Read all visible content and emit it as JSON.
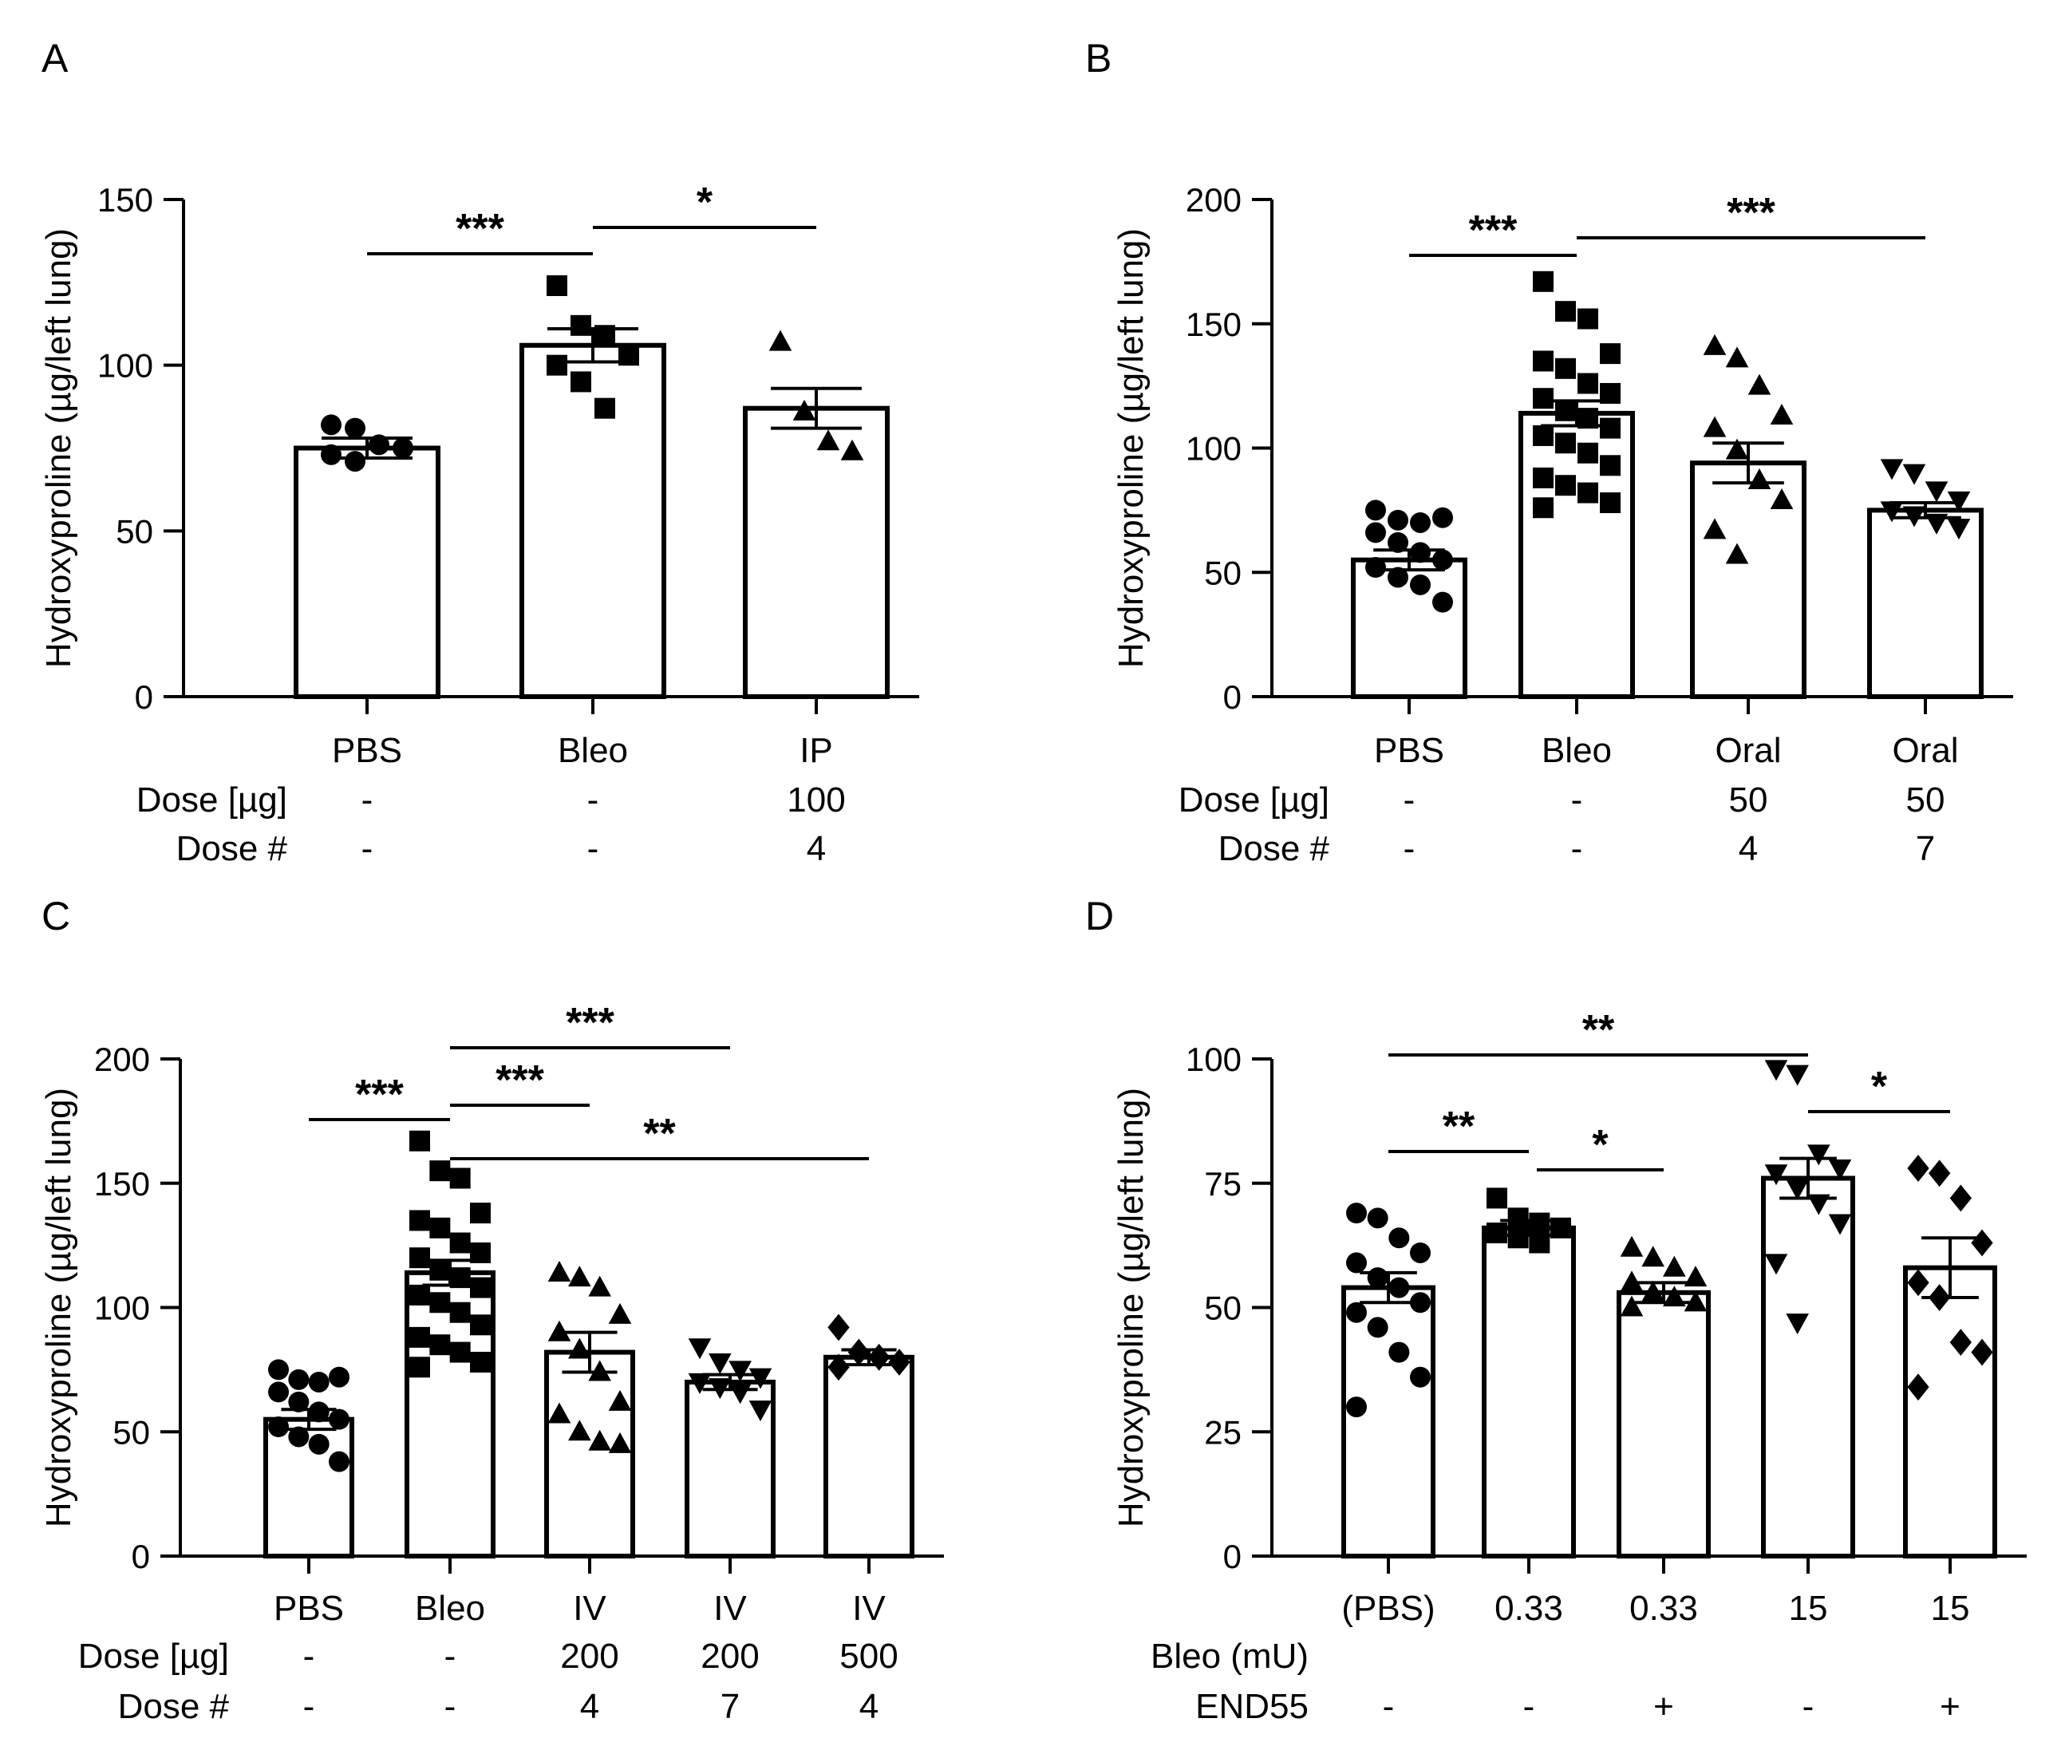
{
  "chart_data": [
    {
      "panel": "A",
      "type": "bar",
      "ylabel": "Hydroxyproline (µg/left lung)",
      "ylim": [
        0,
        150
      ],
      "yticks": [
        "0",
        "50",
        "100",
        "150"
      ],
      "categories": [
        "PBS",
        "Bleo",
        "IP"
      ],
      "row_labels": [
        "Dose [µg]",
        "Dose #"
      ],
      "rows": [
        [
          "-",
          "-",
          "100"
        ],
        [
          "-",
          "-",
          "4"
        ]
      ],
      "markers": [
        "circle",
        "square",
        "triangle"
      ],
      "values": [
        75,
        106,
        87
      ],
      "sem": [
        3,
        5,
        6
      ],
      "points": [
        [
          82,
          81,
          76,
          75,
          73,
          71
        ],
        [
          124,
          112,
          109,
          103,
          100,
          95,
          87
        ],
        [
          107,
          86,
          77,
          74
        ]
      ],
      "significance": [
        {
          "from": 0,
          "to": 1,
          "label": "***",
          "level": 0
        },
        {
          "from": 1,
          "to": 2,
          "label": "*",
          "level": 1
        }
      ]
    },
    {
      "panel": "B",
      "type": "bar",
      "ylabel": "Hydroxyproline (µg/left lung)",
      "ylim": [
        0,
        200
      ],
      "yticks": [
        "0",
        "50",
        "100",
        "150",
        "200"
      ],
      "categories": [
        "PBS",
        "Bleo",
        "Oral",
        "Oral"
      ],
      "row_labels": [
        "Dose [µg]",
        "Dose #"
      ],
      "rows": [
        [
          "-",
          "-",
          "50",
          "50"
        ],
        [
          "-",
          "-",
          "4",
          "7"
        ]
      ],
      "markers": [
        "circle",
        "square",
        "triangle",
        "triangle-down"
      ],
      "values": [
        55,
        114,
        94,
        75
      ],
      "sem": [
        4,
        5,
        8,
        3
      ],
      "points": [
        [
          75,
          71,
          70,
          72,
          66,
          62,
          58,
          55,
          52,
          48,
          45,
          38
        ],
        [
          167,
          155,
          152,
          138,
          135,
          132,
          126,
          122,
          120,
          115,
          112,
          108,
          105,
          102,
          98,
          93,
          88,
          85,
          82,
          78,
          76
        ],
        [
          141,
          136,
          125,
          113,
          108,
          99,
          87,
          79,
          67,
          57
        ],
        [
          92,
          90,
          83,
          79,
          75,
          73,
          70,
          68
        ]
      ],
      "significance": [
        {
          "from": 0,
          "to": 1,
          "label": "***",
          "level": 0
        },
        {
          "from": 1,
          "to": 3,
          "label": "***",
          "level": 1
        }
      ]
    },
    {
      "panel": "C",
      "type": "bar",
      "ylabel": "Hydroxyproline (µg/left lung)",
      "ylim": [
        0,
        200
      ],
      "yticks": [
        "0",
        "50",
        "100",
        "150",
        "200"
      ],
      "categories": [
        "PBS",
        "Bleo",
        "IV",
        "IV",
        "IV"
      ],
      "row_labels": [
        "Dose [µg]",
        "Dose #"
      ],
      "rows": [
        [
          "-",
          "-",
          "200",
          "200",
          "500"
        ],
        [
          "-",
          "-",
          "4",
          "7",
          "4"
        ]
      ],
      "markers": [
        "circle",
        "square",
        "triangle",
        "triangle-down",
        "diamond"
      ],
      "values": [
        55,
        114,
        82,
        70,
        80
      ],
      "sem": [
        4,
        5,
        8,
        3,
        3
      ],
      "points": [
        [
          75,
          71,
          70,
          72,
          66,
          62,
          58,
          55,
          52,
          48,
          45,
          38
        ],
        [
          167,
          155,
          152,
          138,
          135,
          132,
          126,
          122,
          120,
          115,
          112,
          108,
          105,
          102,
          98,
          93,
          88,
          85,
          82,
          78,
          76
        ],
        [
          114,
          112,
          108,
          97,
          90,
          83,
          74,
          62,
          57,
          50,
          46,
          45
        ],
        [
          84,
          78,
          75,
          72,
          70,
          68,
          66,
          59
        ],
        [
          92,
          82,
          80,
          78,
          76
        ]
      ],
      "significance": [
        {
          "from": 0,
          "to": 1,
          "label": "***",
          "level": 0
        },
        {
          "from": 1,
          "to": 2,
          "label": "***",
          "level": 0
        },
        {
          "from": 1,
          "to": 3,
          "label": "***",
          "level": 1
        },
        {
          "from": 1,
          "to": 4,
          "label": "**",
          "level": -1
        }
      ]
    },
    {
      "panel": "D",
      "type": "bar",
      "ylabel": "Hydroxyproline (µg/left lung)",
      "ylim": [
        0,
        100
      ],
      "yticks": [
        "0",
        "25",
        "50",
        "75",
        "100"
      ],
      "categories": [
        "(PBS)",
        "0.33",
        "0.33",
        "15",
        "15"
      ],
      "row_labels": [
        "Bleo (mU)",
        "END55"
      ],
      "rows": [
        [
          "",
          "",
          "",
          "",
          ""
        ],
        [
          "-",
          "-",
          "+",
          "-",
          "+"
        ]
      ],
      "markers": [
        "circle",
        "square",
        "triangle",
        "triangle-down",
        "diamond"
      ],
      "values": [
        54,
        66,
        53,
        76,
        58
      ],
      "sem": [
        3,
        1.5,
        2,
        4,
        6
      ],
      "points": [
        [
          69,
          68,
          64,
          61,
          59,
          56,
          54,
          51,
          49,
          46,
          41,
          36,
          30
        ],
        [
          72,
          68,
          67,
          66,
          65,
          64,
          63
        ],
        [
          62,
          60,
          58,
          56,
          55,
          53,
          52,
          51,
          50
        ],
        [
          98,
          97,
          81,
          78,
          77,
          74,
          71,
          67,
          59,
          47
        ],
        [
          78,
          77,
          72,
          63,
          55,
          52,
          43,
          41,
          34
        ]
      ],
      "significance": [
        {
          "from": 0,
          "to": 3,
          "label": "**",
          "level": 1
        },
        {
          "from": 0,
          "to": 1,
          "label": "**",
          "level": 0
        },
        {
          "from": 1,
          "to": 2,
          "label": "*",
          "level": 0
        },
        {
          "from": 3,
          "to": 4,
          "label": "*",
          "level": 0
        }
      ]
    }
  ]
}
